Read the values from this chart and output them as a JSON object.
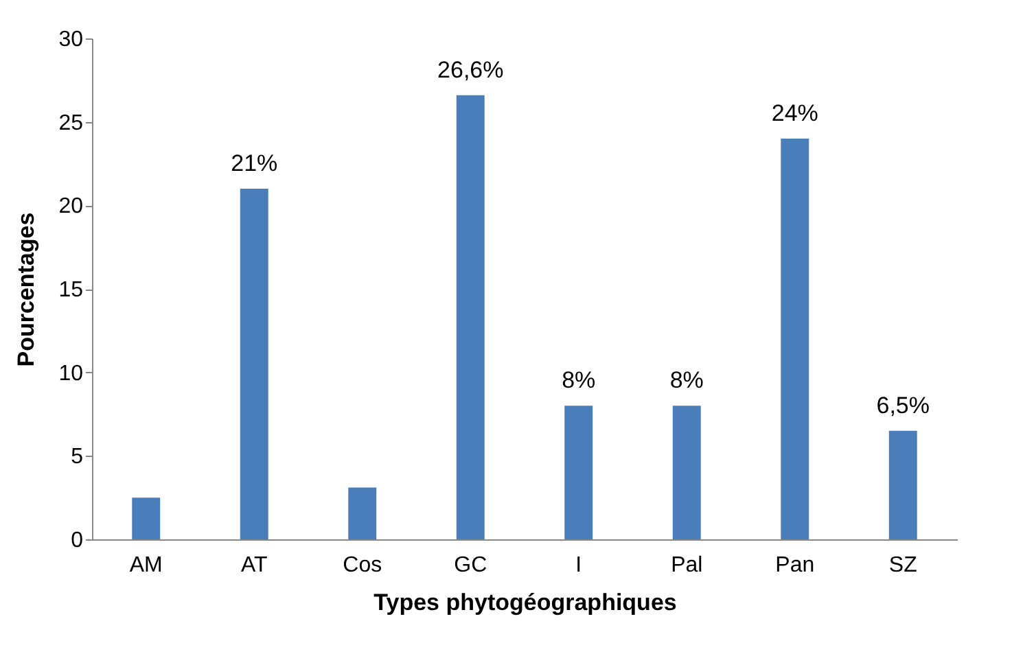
{
  "chart_data": {
    "type": "bar",
    "xlabel": "Types phytogéographiques",
    "ylabel": "Pourcentages",
    "categories": [
      "AM",
      "AT",
      "Cos",
      "GC",
      "I",
      "Pal",
      "Pan",
      "SZ"
    ],
    "values": [
      2.5,
      21,
      3.1,
      26.6,
      8,
      8,
      24,
      6.5
    ],
    "value_labels": [
      null,
      "21%",
      null,
      "26,6%",
      "8%",
      "8%",
      "24%",
      "6,5%"
    ],
    "color": "#4a7ebb",
    "ylim": [
      0,
      30
    ],
    "yticks": [
      0,
      5,
      10,
      15,
      20,
      25,
      30
    ],
    "grid": false
  }
}
